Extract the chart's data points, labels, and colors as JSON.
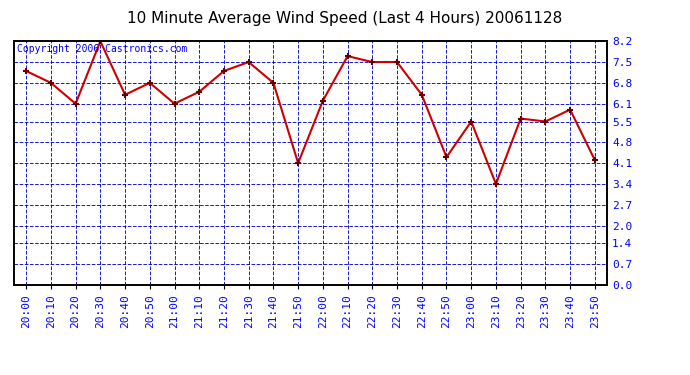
{
  "title": "10 Minute Average Wind Speed (Last 4 Hours) 20061128",
  "copyright": "Copyright 2006 Castronics.com",
  "x_labels": [
    "20:00",
    "20:10",
    "20:20",
    "20:30",
    "20:40",
    "20:50",
    "21:00",
    "21:10",
    "21:20",
    "21:30",
    "21:40",
    "21:50",
    "22:00",
    "22:10",
    "22:20",
    "22:30",
    "22:40",
    "22:50",
    "23:00",
    "23:10",
    "23:20",
    "23:30",
    "23:40",
    "23:50"
  ],
  "y_values": [
    7.2,
    6.8,
    6.1,
    8.2,
    6.4,
    6.8,
    6.1,
    6.5,
    7.2,
    7.5,
    6.8,
    4.1,
    6.2,
    7.7,
    7.5,
    7.5,
    6.4,
    4.3,
    5.5,
    3.4,
    5.6,
    5.5,
    5.9,
    4.2
  ],
  "ylim": [
    0.0,
    8.2
  ],
  "yticks": [
    0.0,
    0.7,
    1.4,
    2.0,
    2.7,
    3.4,
    4.1,
    4.8,
    5.5,
    6.1,
    6.8,
    7.5,
    8.2
  ],
  "line_color": "#cc0000",
  "marker_color": "#660000",
  "bg_color": "#ffffff",
  "grid_color": "#0000cc",
  "border_color": "#000000",
  "title_fontsize": 11,
  "copyright_fontsize": 7,
  "tick_fontsize": 8
}
